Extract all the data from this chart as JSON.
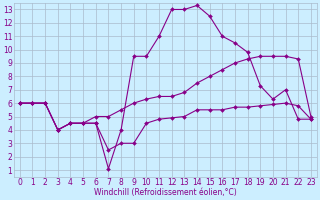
{
  "xlabel": "Windchill (Refroidissement éolien,°C)",
  "background_color": "#cceeff",
  "grid_color": "#aabbcc",
  "line_color": "#880088",
  "xlim": [
    -0.5,
    23.5
  ],
  "ylim": [
    0.5,
    13.5
  ],
  "xticks": [
    0,
    1,
    2,
    3,
    4,
    5,
    6,
    7,
    8,
    9,
    10,
    11,
    12,
    13,
    14,
    15,
    16,
    17,
    18,
    19,
    20,
    21,
    22,
    23
  ],
  "yticks": [
    1,
    2,
    3,
    4,
    5,
    6,
    7,
    8,
    9,
    10,
    11,
    12,
    13
  ],
  "series1_x": [
    0,
    1,
    2,
    3,
    4,
    5,
    6,
    7,
    8,
    9,
    10,
    11,
    12,
    13,
    14,
    15,
    16,
    17,
    18,
    19,
    20,
    21,
    22,
    23
  ],
  "series1_y": [
    6,
    6,
    6,
    4,
    4.5,
    4.5,
    4.5,
    1.1,
    4.0,
    9.5,
    9.5,
    11,
    13,
    13,
    13.3,
    12.5,
    11,
    10.5,
    9.8,
    7.3,
    6.3,
    7.0,
    4.8,
    4.8
  ],
  "series2_x": [
    0,
    1,
    2,
    3,
    4,
    5,
    6,
    7,
    8,
    9,
    10,
    11,
    12,
    13,
    14,
    15,
    16,
    17,
    18,
    19,
    20,
    21,
    22,
    23
  ],
  "series2_y": [
    6,
    6,
    6,
    4,
    4.5,
    4.5,
    5.0,
    5.0,
    5.5,
    6.0,
    6.3,
    6.5,
    6.5,
    6.8,
    7.5,
    8.0,
    8.5,
    9.0,
    9.3,
    9.5,
    9.5,
    9.5,
    9.3,
    5.0
  ],
  "series3_x": [
    0,
    1,
    2,
    3,
    4,
    5,
    6,
    7,
    8,
    9,
    10,
    11,
    12,
    13,
    14,
    15,
    16,
    17,
    18,
    19,
    20,
    21,
    22,
    23
  ],
  "series3_y": [
    6,
    6,
    6,
    4,
    4.5,
    4.5,
    4.5,
    2.5,
    3.0,
    3.0,
    4.5,
    4.8,
    4.9,
    5.0,
    5.5,
    5.5,
    5.5,
    5.7,
    5.7,
    5.8,
    5.9,
    6.0,
    5.8,
    4.8
  ],
  "font_size": 5.5,
  "marker_size": 2.0,
  "line_width": 0.8
}
